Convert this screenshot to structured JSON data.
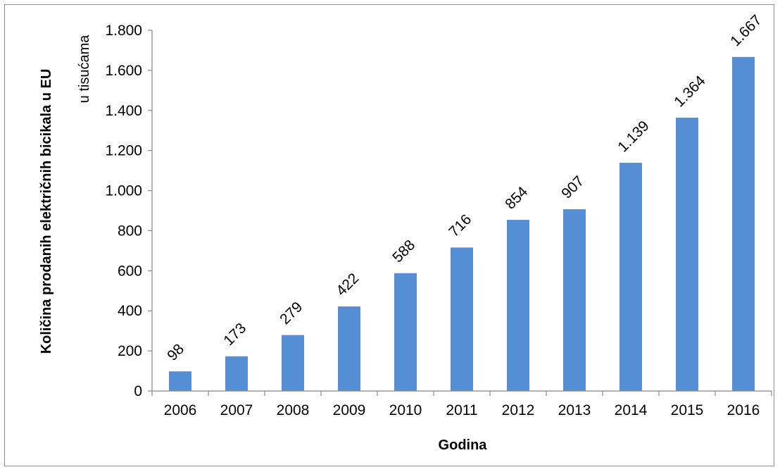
{
  "chart_data": {
    "type": "bar",
    "title": "",
    "xlabel": "Godina",
    "ylabel": "Količina prodanih električnih bicikala u EU",
    "unit_label": "u tisućama",
    "categories": [
      "2006",
      "2007",
      "2008",
      "2009",
      "2010",
      "2011",
      "2012",
      "2013",
      "2014",
      "2015",
      "2016"
    ],
    "values": [
      98,
      173,
      279,
      422,
      588,
      716,
      854,
      907,
      1139,
      1364,
      1667
    ],
    "value_labels": [
      "98",
      "173",
      "279",
      "422",
      "588",
      "716",
      "854",
      "907",
      "1.139",
      "1.364",
      "1.667"
    ],
    "ylim": [
      0,
      1800
    ],
    "yticks": [
      0,
      200,
      400,
      600,
      800,
      1000,
      1200,
      1400,
      1600,
      1800
    ],
    "ytick_labels": [
      "0",
      "200",
      "400",
      "600",
      "800",
      "1.000",
      "1.200",
      "1.400",
      "1.600",
      "1.800"
    ],
    "bar_color": "#558ed5",
    "grid": false,
    "legend": "none"
  }
}
